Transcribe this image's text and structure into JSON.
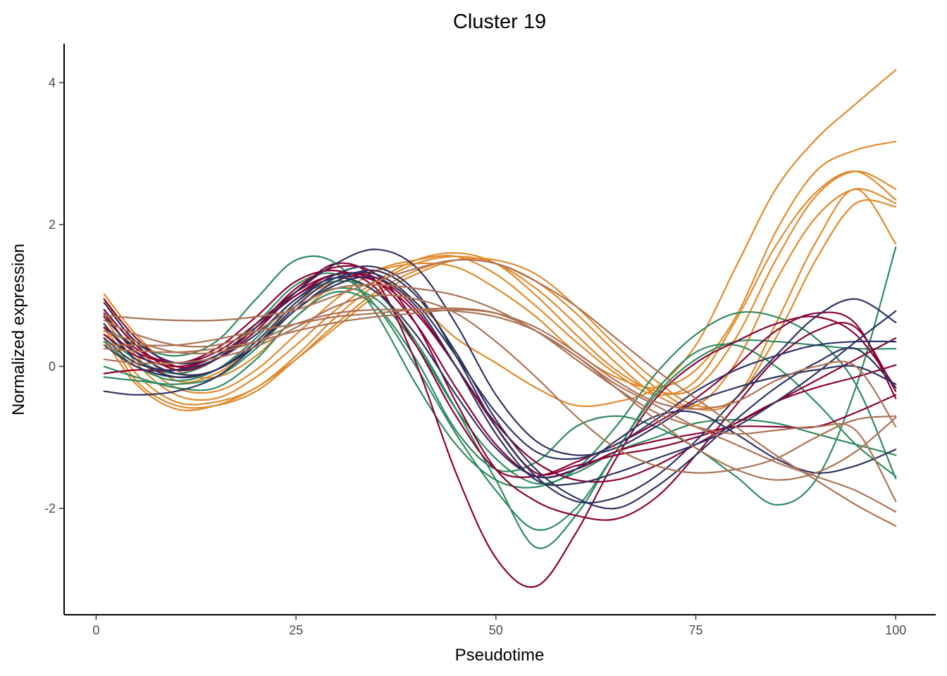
{
  "chart_data": {
    "type": "line",
    "title": "Cluster 19",
    "xlabel": "Pseudotime",
    "ylabel": "Normalized expression",
    "xlim": [
      -4,
      105
    ],
    "ylim": [
      -3.5,
      4.55
    ],
    "xticks": [
      0,
      25,
      50,
      75,
      100
    ],
    "yticks": [
      -2,
      0,
      2,
      4
    ],
    "xtick_labels": [
      "0",
      "25",
      "50",
      "75",
      "100"
    ],
    "ytick_labels": [
      "-2",
      "0",
      "2",
      "4"
    ],
    "grid": false,
    "legend": "none",
    "colors": {
      "orange": "#e08a2c",
      "green": "#2e8b60",
      "crimson": "#8b0035",
      "navy": "#2e3361",
      "brown": "#ad7356"
    },
    "x": [
      1,
      5,
      10,
      15,
      20,
      25,
      30,
      35,
      40,
      45,
      50,
      55,
      60,
      65,
      70,
      75,
      80,
      85,
      90,
      95,
      100
    ],
    "series": [
      {
        "color": "orange",
        "values": [
          1.02,
          0.45,
          -0.05,
          -0.15,
          0.15,
          0.7,
          1.15,
          1.25,
          0.9,
          0.4,
          0.05,
          -0.3,
          -0.55,
          -0.5,
          -0.3,
          0.3,
          1.4,
          2.5,
          3.2,
          3.7,
          4.18
        ]
      },
      {
        "color": "orange",
        "values": [
          0.95,
          0.3,
          -0.2,
          -0.1,
          0.3,
          0.9,
          1.2,
          1.35,
          1.45,
          1.4,
          1.1,
          0.7,
          0.2,
          -0.15,
          -0.3,
          -0.05,
          0.7,
          1.9,
          2.75,
          3.05,
          3.17
        ]
      },
      {
        "color": "orange",
        "values": [
          0.8,
          0.15,
          -0.3,
          -0.35,
          -0.05,
          0.45,
          0.95,
          1.35,
          1.5,
          1.55,
          1.3,
          0.85,
          0.35,
          -0.1,
          -0.4,
          -0.2,
          0.65,
          1.7,
          2.45,
          2.75,
          2.35
        ]
      },
      {
        "color": "orange",
        "values": [
          0.7,
          0.05,
          -0.4,
          -0.45,
          -0.15,
          0.3,
          0.8,
          1.2,
          1.5,
          1.6,
          1.45,
          1.0,
          0.45,
          -0.05,
          -0.35,
          -0.3,
          0.4,
          1.5,
          2.4,
          2.75,
          2.5
        ]
      },
      {
        "color": "orange",
        "values": [
          0.6,
          -0.1,
          -0.5,
          -0.5,
          -0.3,
          0.15,
          0.7,
          1.15,
          1.45,
          1.55,
          1.45,
          1.1,
          0.6,
          0.05,
          -0.4,
          -0.55,
          0.05,
          1.2,
          2.1,
          2.5,
          2.3
        ]
      },
      {
        "color": "orange",
        "values": [
          0.55,
          -0.2,
          -0.55,
          -0.55,
          -0.35,
          0.1,
          0.6,
          1.05,
          1.35,
          1.5,
          1.45,
          1.2,
          0.75,
          0.2,
          -0.3,
          -0.6,
          -0.45,
          0.6,
          1.75,
          2.5,
          1.73
        ]
      },
      {
        "color": "orange",
        "values": [
          0.4,
          -0.25,
          -0.6,
          -0.55,
          -0.3,
          0.1,
          0.55,
          1.0,
          1.3,
          1.5,
          1.5,
          1.3,
          0.85,
          0.3,
          -0.2,
          -0.55,
          -0.45,
          0.4,
          1.5,
          2.3,
          2.25
        ]
      },
      {
        "color": "green",
        "values": [
          0.55,
          0.3,
          0.15,
          0.35,
          0.95,
          1.5,
          1.45,
          0.75,
          -0.25,
          -1.1,
          -1.6,
          -1.7,
          -1.45,
          -0.85,
          -0.1,
          0.45,
          0.75,
          0.7,
          0.4,
          -0.25,
          -1.58
        ]
      },
      {
        "color": "green",
        "values": [
          0.45,
          0.1,
          -0.1,
          0.1,
          0.6,
          1.15,
          1.3,
          0.85,
          0.0,
          -0.95,
          -1.75,
          -2.3,
          -2.0,
          -1.2,
          -0.35,
          0.2,
          0.3,
          0.0,
          -0.5,
          -1.1,
          -1.55
        ]
      },
      {
        "color": "green",
        "values": [
          0.35,
          0.0,
          -0.2,
          -0.05,
          0.4,
          0.95,
          1.2,
          1.05,
          0.35,
          -0.6,
          -1.6,
          -2.55,
          -2.1,
          -1.2,
          -0.4,
          0.1,
          0.35,
          0.35,
          0.3,
          0.25,
          0.25
        ]
      },
      {
        "color": "green",
        "values": [
          0.0,
          -0.15,
          -0.3,
          -0.3,
          0.1,
          0.7,
          1.05,
          0.85,
          0.1,
          -0.9,
          -1.45,
          -1.35,
          -0.85,
          -0.7,
          -0.85,
          -1.15,
          -1.55,
          -1.95,
          -1.6,
          -0.3,
          1.68
        ]
      },
      {
        "color": "green",
        "values": [
          -0.15,
          -0.2,
          -0.25,
          -0.15,
          0.25,
          0.8,
          1.1,
          0.95,
          0.3,
          -0.6,
          -1.3,
          -1.65,
          -1.5,
          -1.2,
          -1.0,
          -0.8,
          -0.75,
          -0.8,
          -0.95,
          -1.1,
          -1.25
        ]
      },
      {
        "color": "crimson",
        "values": [
          0.95,
          0.4,
          0.0,
          0.1,
          0.5,
          1.05,
          1.45,
          1.2,
          0.05,
          -1.5,
          -2.7,
          -3.1,
          -2.35,
          -1.3,
          -0.45,
          0.05,
          0.35,
          0.6,
          0.7,
          0.45,
          -0.3
        ]
      },
      {
        "color": "crimson",
        "values": [
          0.8,
          0.3,
          -0.05,
          0.1,
          0.55,
          1.1,
          1.4,
          1.3,
          0.6,
          -0.5,
          -1.45,
          -1.9,
          -2.1,
          -2.15,
          -1.85,
          -1.25,
          -0.55,
          0.1,
          0.5,
          0.55,
          -0.35
        ]
      },
      {
        "color": "crimson",
        "values": [
          0.7,
          0.25,
          0.05,
          0.25,
          0.7,
          1.2,
          1.35,
          1.1,
          0.3,
          -0.7,
          -1.45,
          -1.55,
          -1.35,
          -1.1,
          -0.8,
          -0.45,
          0.0,
          0.5,
          0.75,
          0.6,
          -0.45
        ]
      },
      {
        "color": "crimson",
        "values": [
          0.55,
          0.2,
          0.05,
          0.2,
          0.6,
          1.05,
          1.3,
          1.25,
          0.8,
          0.0,
          -0.8,
          -1.35,
          -1.6,
          -1.6,
          -1.4,
          -1.1,
          -0.8,
          -0.5,
          -0.3,
          -0.15,
          0.02
        ]
      },
      {
        "color": "crimson",
        "values": [
          0.45,
          0.15,
          0.0,
          0.15,
          0.55,
          1.0,
          1.25,
          1.2,
          0.75,
          0.0,
          -0.85,
          -1.5,
          -1.4,
          -1.25,
          -1.15,
          -1.0,
          -0.8,
          -0.5,
          -0.2,
          0.1,
          0.4
        ]
      },
      {
        "color": "crimson",
        "values": [
          -0.1,
          -0.05,
          -0.05,
          0.15,
          0.55,
          1.0,
          1.3,
          1.2,
          0.6,
          -0.3,
          -1.1,
          -1.55,
          -1.45,
          -1.2,
          -1.05,
          -0.95,
          -0.85,
          -0.85,
          -0.85,
          -0.65,
          -0.4
        ]
      },
      {
        "color": "navy",
        "values": [
          0.9,
          0.35,
          0.05,
          0.15,
          0.55,
          1.05,
          1.45,
          1.65,
          1.4,
          0.6,
          -0.4,
          -1.05,
          -1.25,
          -1.15,
          -0.85,
          -0.5,
          -0.3,
          -0.15,
          -0.05,
          0.0,
          -0.25
        ]
      },
      {
        "color": "navy",
        "values": [
          0.75,
          0.2,
          -0.1,
          -0.05,
          0.35,
          0.9,
          1.3,
          1.4,
          1.05,
          0.15,
          -0.85,
          -1.55,
          -1.9,
          -1.85,
          -1.55,
          -1.05,
          -0.45,
          0.15,
          0.7,
          0.95,
          0.62
        ]
      },
      {
        "color": "navy",
        "values": [
          0.6,
          0.1,
          -0.15,
          -0.05,
          0.3,
          0.8,
          1.15,
          1.25,
          0.85,
          0.0,
          -0.95,
          -1.6,
          -1.65,
          -1.5,
          -1.3,
          -1.1,
          -0.85,
          -0.5,
          -0.1,
          0.35,
          0.78
        ]
      },
      {
        "color": "navy",
        "values": [
          0.3,
          0.0,
          -0.15,
          -0.05,
          0.3,
          0.8,
          1.2,
          1.35,
          1.0,
          0.2,
          -0.75,
          -1.45,
          -1.85,
          -2.0,
          -1.7,
          -1.25,
          -0.75,
          -0.3,
          0.05,
          0.25,
          -0.3
        ]
      },
      {
        "color": "navy",
        "values": [
          -0.35,
          -0.4,
          -0.35,
          -0.15,
          0.3,
          0.85,
          1.25,
          1.3,
          0.9,
          0.15,
          -0.65,
          -1.2,
          -1.3,
          -1.1,
          -0.75,
          -0.35,
          -0.05,
          0.15,
          0.3,
          0.35,
          0.35
        ]
      },
      {
        "color": "navy",
        "values": [
          0.4,
          0.05,
          -0.05,
          0.1,
          0.45,
          0.95,
          1.25,
          1.05,
          0.45,
          -0.4,
          -1.15,
          -1.55,
          -1.45,
          -1.05,
          -0.7,
          -0.65,
          -0.95,
          -1.3,
          -1.5,
          -1.4,
          -1.17
        ]
      },
      {
        "color": "brown",
        "values": [
          0.72,
          0.68,
          0.65,
          0.65,
          0.7,
          0.8,
          1.0,
          1.2,
          1.38,
          1.5,
          1.45,
          1.2,
          0.85,
          0.4,
          -0.05,
          -0.45,
          -0.85,
          -1.25,
          -1.6,
          -1.95,
          -2.25
        ]
      },
      {
        "color": "brown",
        "values": [
          0.65,
          0.45,
          0.3,
          0.3,
          0.5,
          0.85,
          1.1,
          1.15,
          1.1,
          1.0,
          0.8,
          0.5,
          0.15,
          -0.25,
          -0.55,
          -0.85,
          -1.1,
          -1.35,
          -1.55,
          -1.75,
          -2.05
        ]
      },
      {
        "color": "brown",
        "values": [
          0.5,
          0.35,
          0.2,
          0.2,
          0.35,
          0.6,
          0.75,
          0.8,
          0.8,
          0.78,
          0.7,
          0.5,
          0.15,
          -0.3,
          -0.75,
          -1.15,
          -1.45,
          -1.6,
          -1.5,
          -1.2,
          -0.72
        ]
      },
      {
        "color": "brown",
        "values": [
          0.3,
          0.3,
          0.3,
          0.38,
          0.5,
          0.6,
          0.7,
          0.75,
          0.8,
          0.82,
          0.75,
          0.5,
          0.1,
          -0.3,
          -0.65,
          -0.85,
          -0.95,
          -0.9,
          -0.85,
          -0.9,
          -1.9
        ]
      },
      {
        "color": "brown",
        "values": [
          0.25,
          0.22,
          0.2,
          0.25,
          0.35,
          0.5,
          0.62,
          0.7,
          0.75,
          0.8,
          0.75,
          0.55,
          0.2,
          -0.2,
          -0.5,
          -0.6,
          -0.5,
          -0.2,
          0.0,
          0.0,
          -0.85
        ]
      },
      {
        "color": "brown",
        "values": [
          0.1,
          0.05,
          0.05,
          0.12,
          0.28,
          0.55,
          0.85,
          1.0,
          0.95,
          0.75,
          0.35,
          -0.15,
          -0.7,
          -1.15,
          -1.4,
          -1.5,
          -1.45,
          -1.3,
          -1.0,
          -0.75,
          -0.7
        ]
      }
    ]
  }
}
